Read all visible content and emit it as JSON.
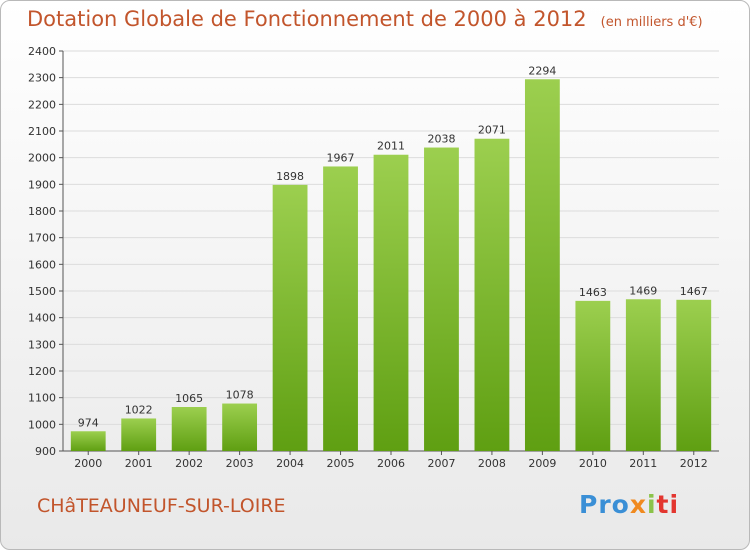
{
  "header": {
    "title": "Dotation Globale de Fonctionnement de 2000 à 2012",
    "subtitle": "(en milliers d'€)"
  },
  "footer": {
    "commune": "CHâTEAUNEUF-SUR-LOIRE",
    "logo": [
      "Pro",
      "x",
      "i",
      "ti"
    ]
  },
  "colors": {
    "title": "#c2552c",
    "bar_top": "#9ccf4f",
    "bar_bottom": "#5f9f12",
    "grid": "#dcdcdc"
  },
  "chart_data": {
    "type": "bar",
    "title": "Dotation Globale de Fonctionnement de 2000 à 2012",
    "subtitle": "(en milliers d'€)",
    "xlabel": "",
    "ylabel": "",
    "categories": [
      "2000",
      "2001",
      "2002",
      "2003",
      "2004",
      "2005",
      "2006",
      "2007",
      "2008",
      "2009",
      "2010",
      "2011",
      "2012"
    ],
    "values": [
      974,
      1022,
      1065,
      1078,
      1898,
      1967,
      2011,
      2038,
      2071,
      2294,
      1463,
      1469,
      1467
    ],
    "ylim": [
      900,
      2400
    ],
    "yticks": [
      900,
      1000,
      1100,
      1200,
      1300,
      1400,
      1500,
      1600,
      1700,
      1800,
      1900,
      2000,
      2100,
      2200,
      2300,
      2400
    ],
    "grid": true,
    "data_labels": true
  }
}
